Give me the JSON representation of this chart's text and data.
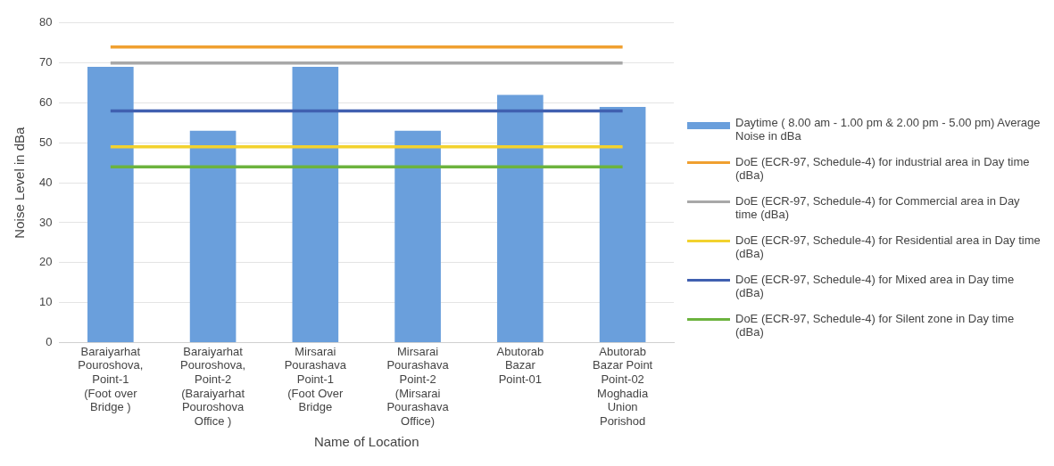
{
  "chart_data": {
    "type": "bar",
    "categories": [
      "Baraiyarhat Pouroshova, Point-1 (Foot over Bridge )",
      "Baraiyarhat Pouroshova, Point-2 (Baraiyarhat Pouroshova Office )",
      "Mirsarai Pourashava Point-1 (Foot Over Bridge",
      "Mirsarai Pourashava Point-2 (Mirsarai Pourashava Office)",
      "Abutorab Bazar Point-01",
      "Abutorab Bazar Point Point-02 Moghadia Union Porishod"
    ],
    "series": [
      {
        "name": "Daytime ( 8.00 am - 1.00 pm & 2.00 pm - 5.00 pm) Average Noise in dBa",
        "color": "#6a9fdc",
        "values": [
          69,
          53,
          69,
          53,
          62,
          59
        ]
      },
      {
        "type": "line",
        "name": "DoE (ECR-97, Schedule-4) for industrial area in Day time (dBa)",
        "color": "#f0a030",
        "values": [
          74,
          74,
          74,
          74,
          74,
          74
        ]
      },
      {
        "type": "line",
        "name": "DoE (ECR-97, Schedule-4) for Commercial area in Day time (dBa)",
        "color": "#a8a8a8",
        "values": [
          70,
          70,
          70,
          70,
          70,
          70
        ]
      },
      {
        "type": "line",
        "name": "DoE (ECR-97, Schedule-4) for Residential area in Day time (dBa)",
        "color": "#f2d22e",
        "values": [
          49,
          49,
          49,
          49,
          49,
          49
        ]
      },
      {
        "type": "line",
        "name": "DoE (ECR-97, Schedule-4) for Mixed area in Day time (dBa)",
        "color": "#4060b0",
        "values": [
          58,
          58,
          58,
          58,
          58,
          58
        ]
      },
      {
        "type": "line",
        "name": "DoE (ECR-97, Schedule-4) for Silent zone in Day time (dBa)",
        "color": "#6cb33e",
        "values": [
          44,
          44,
          44,
          44,
          44,
          44
        ]
      }
    ],
    "xlabel": "Name of Location",
    "ylabel": "Noise Level in dBa",
    "ylim": [
      0,
      80
    ],
    "yticks": [
      0,
      10,
      20,
      30,
      40,
      50,
      60,
      70,
      80
    ],
    "grid": "y",
    "legend": "right",
    "marker": "none",
    "line_style": "solid"
  }
}
